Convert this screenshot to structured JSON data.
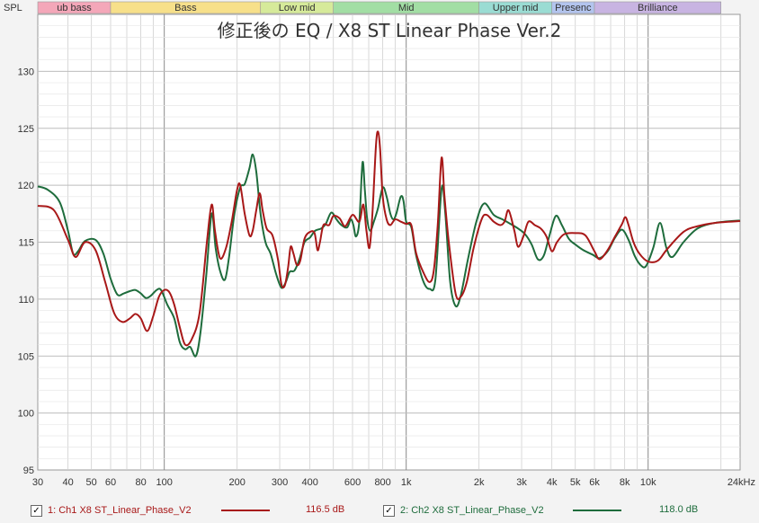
{
  "chart_data": {
    "type": "line",
    "title": "修正後の EQ / X8 ST Linear Phase Ver.2",
    "ylabel": "SPL",
    "x_scale": "log",
    "xlim": [
      30,
      24000
    ],
    "ylim": [
      95,
      135
    ],
    "y_ticks": [
      "130",
      "125",
      "120",
      "115",
      "110",
      "105",
      "100",
      "95"
    ],
    "y_tick_values": [
      130,
      125,
      120,
      115,
      110,
      105,
      100,
      95
    ],
    "x_ticks": [
      {
        "label": "30",
        "value": 30
      },
      {
        "label": "40",
        "value": 40
      },
      {
        "label": "50",
        "value": 50
      },
      {
        "label": "60",
        "value": 60
      },
      {
        "label": "80",
        "value": 80
      },
      {
        "label": "100",
        "value": 100
      },
      {
        "label": "200",
        "value": 200
      },
      {
        "label": "300",
        "value": 300
      },
      {
        "label": "400",
        "value": 400
      },
      {
        "label": "600",
        "value": 600
      },
      {
        "label": "800",
        "value": 800
      },
      {
        "label": "1k",
        "value": 1000
      },
      {
        "label": "2k",
        "value": 2000
      },
      {
        "label": "3k",
        "value": 3000
      },
      {
        "label": "4k",
        "value": 4000
      },
      {
        "label": "5k",
        "value": 5000
      },
      {
        "label": "6k",
        "value": 6000
      },
      {
        "label": "8k",
        "value": 8000
      },
      {
        "label": "10k",
        "value": 10000
      },
      {
        "label": "24kHz",
        "value": 24000
      }
    ],
    "bands": [
      {
        "label": "ub bass",
        "from": 30,
        "to": 60,
        "color": "#f4a7b9"
      },
      {
        "label": "Bass",
        "from": 60,
        "to": 250,
        "color": "#f7e08a"
      },
      {
        "label": "Low mid",
        "from": 250,
        "to": 500,
        "color": "#d6ea9a"
      },
      {
        "label": "Mid",
        "from": 500,
        "to": 2000,
        "color": "#a2dea4"
      },
      {
        "label": "Upper mid",
        "from": 2000,
        "to": 4000,
        "color": "#9adcd3"
      },
      {
        "label": "Presenc",
        "from": 4000,
        "to": 6000,
        "color": "#b3c4ee"
      },
      {
        "label": "Brilliance",
        "from": 6000,
        "to": 20000,
        "color": "#c8b4e2"
      }
    ],
    "series": [
      {
        "name": "1: Ch1 X8 ST_Linear_Phase_V2",
        "color": "#a81818",
        "value_label": "116.5 dB",
        "points": [
          [
            30,
            118.2
          ],
          [
            35,
            117.8
          ],
          [
            40,
            115.2
          ],
          [
            43,
            113.7
          ],
          [
            47,
            115.0
          ],
          [
            52,
            114.3
          ],
          [
            57,
            111.5
          ],
          [
            62,
            108.8
          ],
          [
            67,
            108
          ],
          [
            72,
            108.3
          ],
          [
            76,
            108.7
          ],
          [
            80,
            108.3
          ],
          [
            85,
            107.2
          ],
          [
            90,
            108.5
          ],
          [
            95,
            110.2
          ],
          [
            100,
            110.8
          ],
          [
            105,
            110.6
          ],
          [
            110,
            109.5
          ],
          [
            116,
            107.5
          ],
          [
            122,
            106.0
          ],
          [
            130,
            106.5
          ],
          [
            140,
            108.8
          ],
          [
            150,
            115
          ],
          [
            157,
            118.3
          ],
          [
            162,
            116
          ],
          [
            170,
            113.6
          ],
          [
            180,
            114.5
          ],
          [
            190,
            116.8
          ],
          [
            200,
            119.6
          ],
          [
            206,
            120.0
          ],
          [
            215,
            117.5
          ],
          [
            225,
            115.6
          ],
          [
            232,
            116.0
          ],
          [
            240,
            117.8
          ],
          [
            248,
            119.3
          ],
          [
            255,
            117.8
          ],
          [
            265,
            116.2
          ],
          [
            280,
            115.6
          ],
          [
            295,
            113.5
          ],
          [
            305,
            111.3
          ],
          [
            315,
            111.2
          ],
          [
            325,
            112.8
          ],
          [
            333,
            114.6
          ],
          [
            342,
            114.0
          ],
          [
            353,
            113.0
          ],
          [
            365,
            113.4
          ],
          [
            380,
            115.3
          ],
          [
            400,
            115.9
          ],
          [
            418,
            115.8
          ],
          [
            430,
            114.3
          ],
          [
            440,
            115.0
          ],
          [
            455,
            116.5
          ],
          [
            480,
            116.5
          ],
          [
            500,
            117.3
          ],
          [
            530,
            117.1
          ],
          [
            560,
            116.4
          ],
          [
            600,
            117.4
          ],
          [
            640,
            116.8
          ],
          [
            665,
            118.3
          ],
          [
            685,
            116.0
          ],
          [
            705,
            114.5
          ],
          [
            725,
            117.5
          ],
          [
            750,
            123.5
          ],
          [
            765,
            124.7
          ],
          [
            780,
            123.2
          ],
          [
            800,
            119.0
          ],
          [
            830,
            117.0
          ],
          [
            860,
            116.5
          ],
          [
            900,
            117.0
          ],
          [
            950,
            116.8
          ],
          [
            1000,
            116.6
          ],
          [
            1050,
            116.5
          ],
          [
            1100,
            114.0
          ],
          [
            1180,
            112.3
          ],
          [
            1250,
            111.5
          ],
          [
            1300,
            112.5
          ],
          [
            1350,
            116.5
          ],
          [
            1400,
            122.4
          ],
          [
            1440,
            119.0
          ],
          [
            1500,
            115.0
          ],
          [
            1600,
            110.5
          ],
          [
            1680,
            110.2
          ],
          [
            1780,
            111.5
          ],
          [
            1900,
            114.5
          ],
          [
            2050,
            117.0
          ],
          [
            2150,
            117.4
          ],
          [
            2300,
            116.8
          ],
          [
            2450,
            116.5
          ],
          [
            2550,
            116.8
          ],
          [
            2650,
            117.8
          ],
          [
            2800,
            116.0
          ],
          [
            2900,
            114.6
          ],
          [
            3050,
            115.5
          ],
          [
            3200,
            116.8
          ],
          [
            3400,
            116.5
          ],
          [
            3600,
            116.2
          ],
          [
            3800,
            115.5
          ],
          [
            4000,
            114.2
          ],
          [
            4200,
            115.0
          ],
          [
            4500,
            115.7
          ],
          [
            5000,
            115.8
          ],
          [
            5500,
            115.6
          ],
          [
            6000,
            114.2
          ],
          [
            6300,
            113.5
          ],
          [
            6800,
            114.3
          ],
          [
            7300,
            115.5
          ],
          [
            7800,
            116.6
          ],
          [
            8050,
            117.2
          ],
          [
            8300,
            116.5
          ],
          [
            8700,
            115.0
          ],
          [
            9200,
            114.0
          ],
          [
            10000,
            113.3
          ],
          [
            11000,
            113.4
          ],
          [
            12000,
            114.4
          ],
          [
            14000,
            115.9
          ],
          [
            16000,
            116.4
          ],
          [
            19000,
            116.7
          ],
          [
            24000,
            116.85
          ]
        ]
      },
      {
        "name": "2: Ch2 X8 ST_Linear_Phase_V2",
        "color": "#1e6c3c",
        "value_label": "118.0 dB",
        "points": [
          [
            30,
            119.9
          ],
          [
            33,
            119.6
          ],
          [
            37,
            118.5
          ],
          [
            40,
            116.0
          ],
          [
            42,
            114.0
          ],
          [
            44,
            114.2
          ],
          [
            47,
            115.1
          ],
          [
            52,
            115.2
          ],
          [
            56,
            114.0
          ],
          [
            60,
            111.8
          ],
          [
            64,
            110.4
          ],
          [
            68,
            110.5
          ],
          [
            72,
            110.7
          ],
          [
            76,
            110.8
          ],
          [
            80,
            110.5
          ],
          [
            84,
            110.1
          ],
          [
            88,
            110.3
          ],
          [
            93,
            110.8
          ],
          [
            97,
            110.8
          ],
          [
            103,
            109.5
          ],
          [
            110,
            108.3
          ],
          [
            116,
            106.2
          ],
          [
            122,
            105.6
          ],
          [
            128,
            105.8
          ],
          [
            135,
            105.0
          ],
          [
            141,
            107.0
          ],
          [
            149,
            112.0
          ],
          [
            157,
            117.5
          ],
          [
            163,
            114.5
          ],
          [
            170,
            112.5
          ],
          [
            178,
            111.7
          ],
          [
            185,
            113.6
          ],
          [
            195,
            117.5
          ],
          [
            206,
            119.8
          ],
          [
            215,
            120.1
          ],
          [
            225,
            121.5
          ],
          [
            232,
            122.7
          ],
          [
            240,
            121.2
          ],
          [
            250,
            117.5
          ],
          [
            262,
            115.0
          ],
          [
            275,
            114.0
          ],
          [
            290,
            112.2
          ],
          [
            305,
            111.0
          ],
          [
            318,
            111.5
          ],
          [
            330,
            112.4
          ],
          [
            345,
            112.5
          ],
          [
            362,
            113.5
          ],
          [
            380,
            115.0
          ],
          [
            400,
            115.4
          ],
          [
            420,
            116.0
          ],
          [
            445,
            116.2
          ],
          [
            465,
            116.6
          ],
          [
            490,
            117.6
          ],
          [
            515,
            117.0
          ],
          [
            540,
            116.5
          ],
          [
            570,
            116.3
          ],
          [
            590,
            117.0
          ],
          [
            605,
            116.5
          ],
          [
            620,
            115.5
          ],
          [
            640,
            116.8
          ],
          [
            660,
            122.0
          ],
          [
            675,
            119.5
          ],
          [
            690,
            117.0
          ],
          [
            710,
            116.0
          ],
          [
            735,
            116.8
          ],
          [
            765,
            118.0
          ],
          [
            800,
            119.8
          ],
          [
            830,
            119.0
          ],
          [
            860,
            117.5
          ],
          [
            885,
            117.0
          ],
          [
            910,
            117.5
          ],
          [
            950,
            119.0
          ],
          [
            975,
            118.6
          ],
          [
            1000,
            116.8
          ],
          [
            1050,
            116.3
          ],
          [
            1100,
            113.8
          ],
          [
            1180,
            111.5
          ],
          [
            1250,
            110.9
          ],
          [
            1320,
            111.7
          ],
          [
            1400,
            119.7
          ],
          [
            1450,
            117.6
          ],
          [
            1520,
            111.5
          ],
          [
            1600,
            109.4
          ],
          [
            1680,
            110.3
          ],
          [
            1800,
            113.5
          ],
          [
            1950,
            116.8
          ],
          [
            2100,
            118.4
          ],
          [
            2300,
            117.4
          ],
          [
            2500,
            117.0
          ],
          [
            2700,
            116.6
          ],
          [
            2900,
            116.2
          ],
          [
            3100,
            115.7
          ],
          [
            3300,
            114.8
          ],
          [
            3500,
            113.5
          ],
          [
            3700,
            113.8
          ],
          [
            3900,
            115.5
          ],
          [
            4150,
            117.3
          ],
          [
            4400,
            116.5
          ],
          [
            4700,
            115.3
          ],
          [
            5000,
            114.8
          ],
          [
            5400,
            114.3
          ],
          [
            5900,
            113.9
          ],
          [
            6300,
            113.6
          ],
          [
            6800,
            114.2
          ],
          [
            7300,
            115.4
          ],
          [
            7800,
            116.1
          ],
          [
            8300,
            115.2
          ],
          [
            8800,
            113.8
          ],
          [
            9300,
            113.0
          ],
          [
            9800,
            112.9
          ],
          [
            10500,
            114.5
          ],
          [
            11200,
            116.7
          ],
          [
            11900,
            114.5
          ],
          [
            12600,
            113.7
          ],
          [
            14000,
            115.0
          ],
          [
            16000,
            116.2
          ],
          [
            19000,
            116.7
          ],
          [
            24000,
            116.9
          ]
        ]
      }
    ]
  }
}
